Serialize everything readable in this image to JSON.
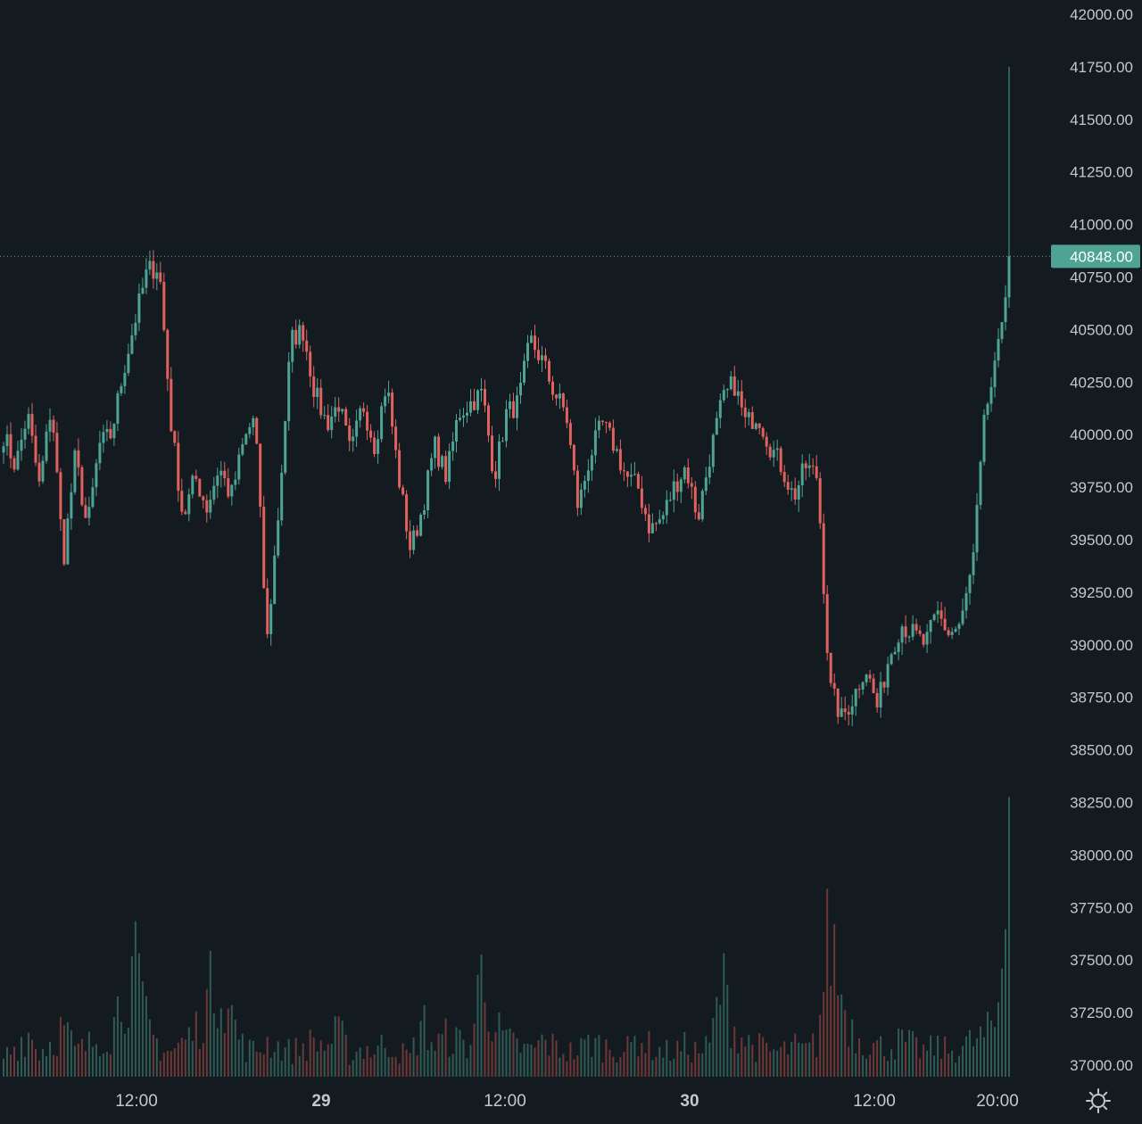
{
  "chart_data": {
    "type": "candlestick",
    "title": "",
    "xlabel": "",
    "ylabel": "",
    "ylim": [
      37000,
      42000
    ],
    "y_ticks": [
      "42000.00",
      "41750.00",
      "41500.00",
      "41250.00",
      "41000.00",
      "40750.00",
      "40500.00",
      "40250.00",
      "40000.00",
      "39750.00",
      "39500.00",
      "39250.00",
      "39000.00",
      "38750.00",
      "38500.00",
      "38250.00",
      "38000.00",
      "37750.00",
      "37500.00",
      "37250.00",
      "37000.00"
    ],
    "x_ticks": [
      {
        "label": "12:00",
        "bold": false
      },
      {
        "label": "29",
        "bold": true
      },
      {
        "label": "12:00",
        "bold": false
      },
      {
        "label": "30",
        "bold": true
      },
      {
        "label": "12:00",
        "bold": false
      },
      {
        "label": "20:00",
        "bold": false
      }
    ],
    "last_price": {
      "value": 40848.0,
      "label": "40848.00"
    },
    "colors": {
      "up": "#4fa394",
      "down": "#e0625f",
      "background": "#131b20",
      "axis_text": "#c3c8cc",
      "price_line": "#5fa59b"
    },
    "price_path": [
      40000,
      39850,
      40100,
      39750,
      40150,
      39400,
      39900,
      39550,
      39950,
      40000,
      40300,
      40550,
      40780,
      40800,
      40050,
      39600,
      39800,
      39650,
      39850,
      39700,
      39950,
      40100,
      39000,
      39650,
      40450,
      40500,
      40200,
      40050,
      40150,
      39900,
      40150,
      39950,
      40250,
      39800,
      39450,
      39650,
      39950,
      39800,
      40100,
      40150,
      40200,
      39800,
      40100,
      40150,
      40450,
      40350,
      40200,
      40100,
      39650,
      39900,
      40050,
      39950,
      39800,
      39750,
      39550,
      39600,
      39750,
      39850,
      39600,
      39900,
      40150,
      40250,
      40050,
      40100,
      39950,
      39850,
      39700,
      39850,
      39800,
      38800,
      38650,
      38750,
      38900,
      38700,
      38950,
      39100,
      39050,
      39000,
      39150,
      39050,
      39100,
      39400,
      40100,
      40350,
      40848
    ],
    "volume_ylim": [
      0,
      100
    ],
    "volume_path": [
      8,
      12,
      18,
      10,
      14,
      20,
      10,
      12,
      16,
      18,
      35,
      42,
      20,
      12,
      10,
      14,
      18,
      30,
      42,
      25,
      12,
      10,
      14,
      12,
      10,
      12,
      14,
      12,
      18,
      8,
      12,
      10,
      14,
      10,
      8,
      22,
      12,
      16,
      14,
      12,
      45,
      20,
      14,
      12,
      10,
      14,
      12,
      10,
      10,
      14,
      12,
      12,
      10,
      16,
      12,
      10,
      10,
      12,
      10,
      12,
      38,
      20,
      14,
      12,
      10,
      10,
      12,
      10,
      14,
      60,
      32,
      18,
      14,
      12,
      12,
      14,
      12,
      10,
      12,
      10,
      12,
      14,
      16,
      22,
      95
    ]
  }
}
